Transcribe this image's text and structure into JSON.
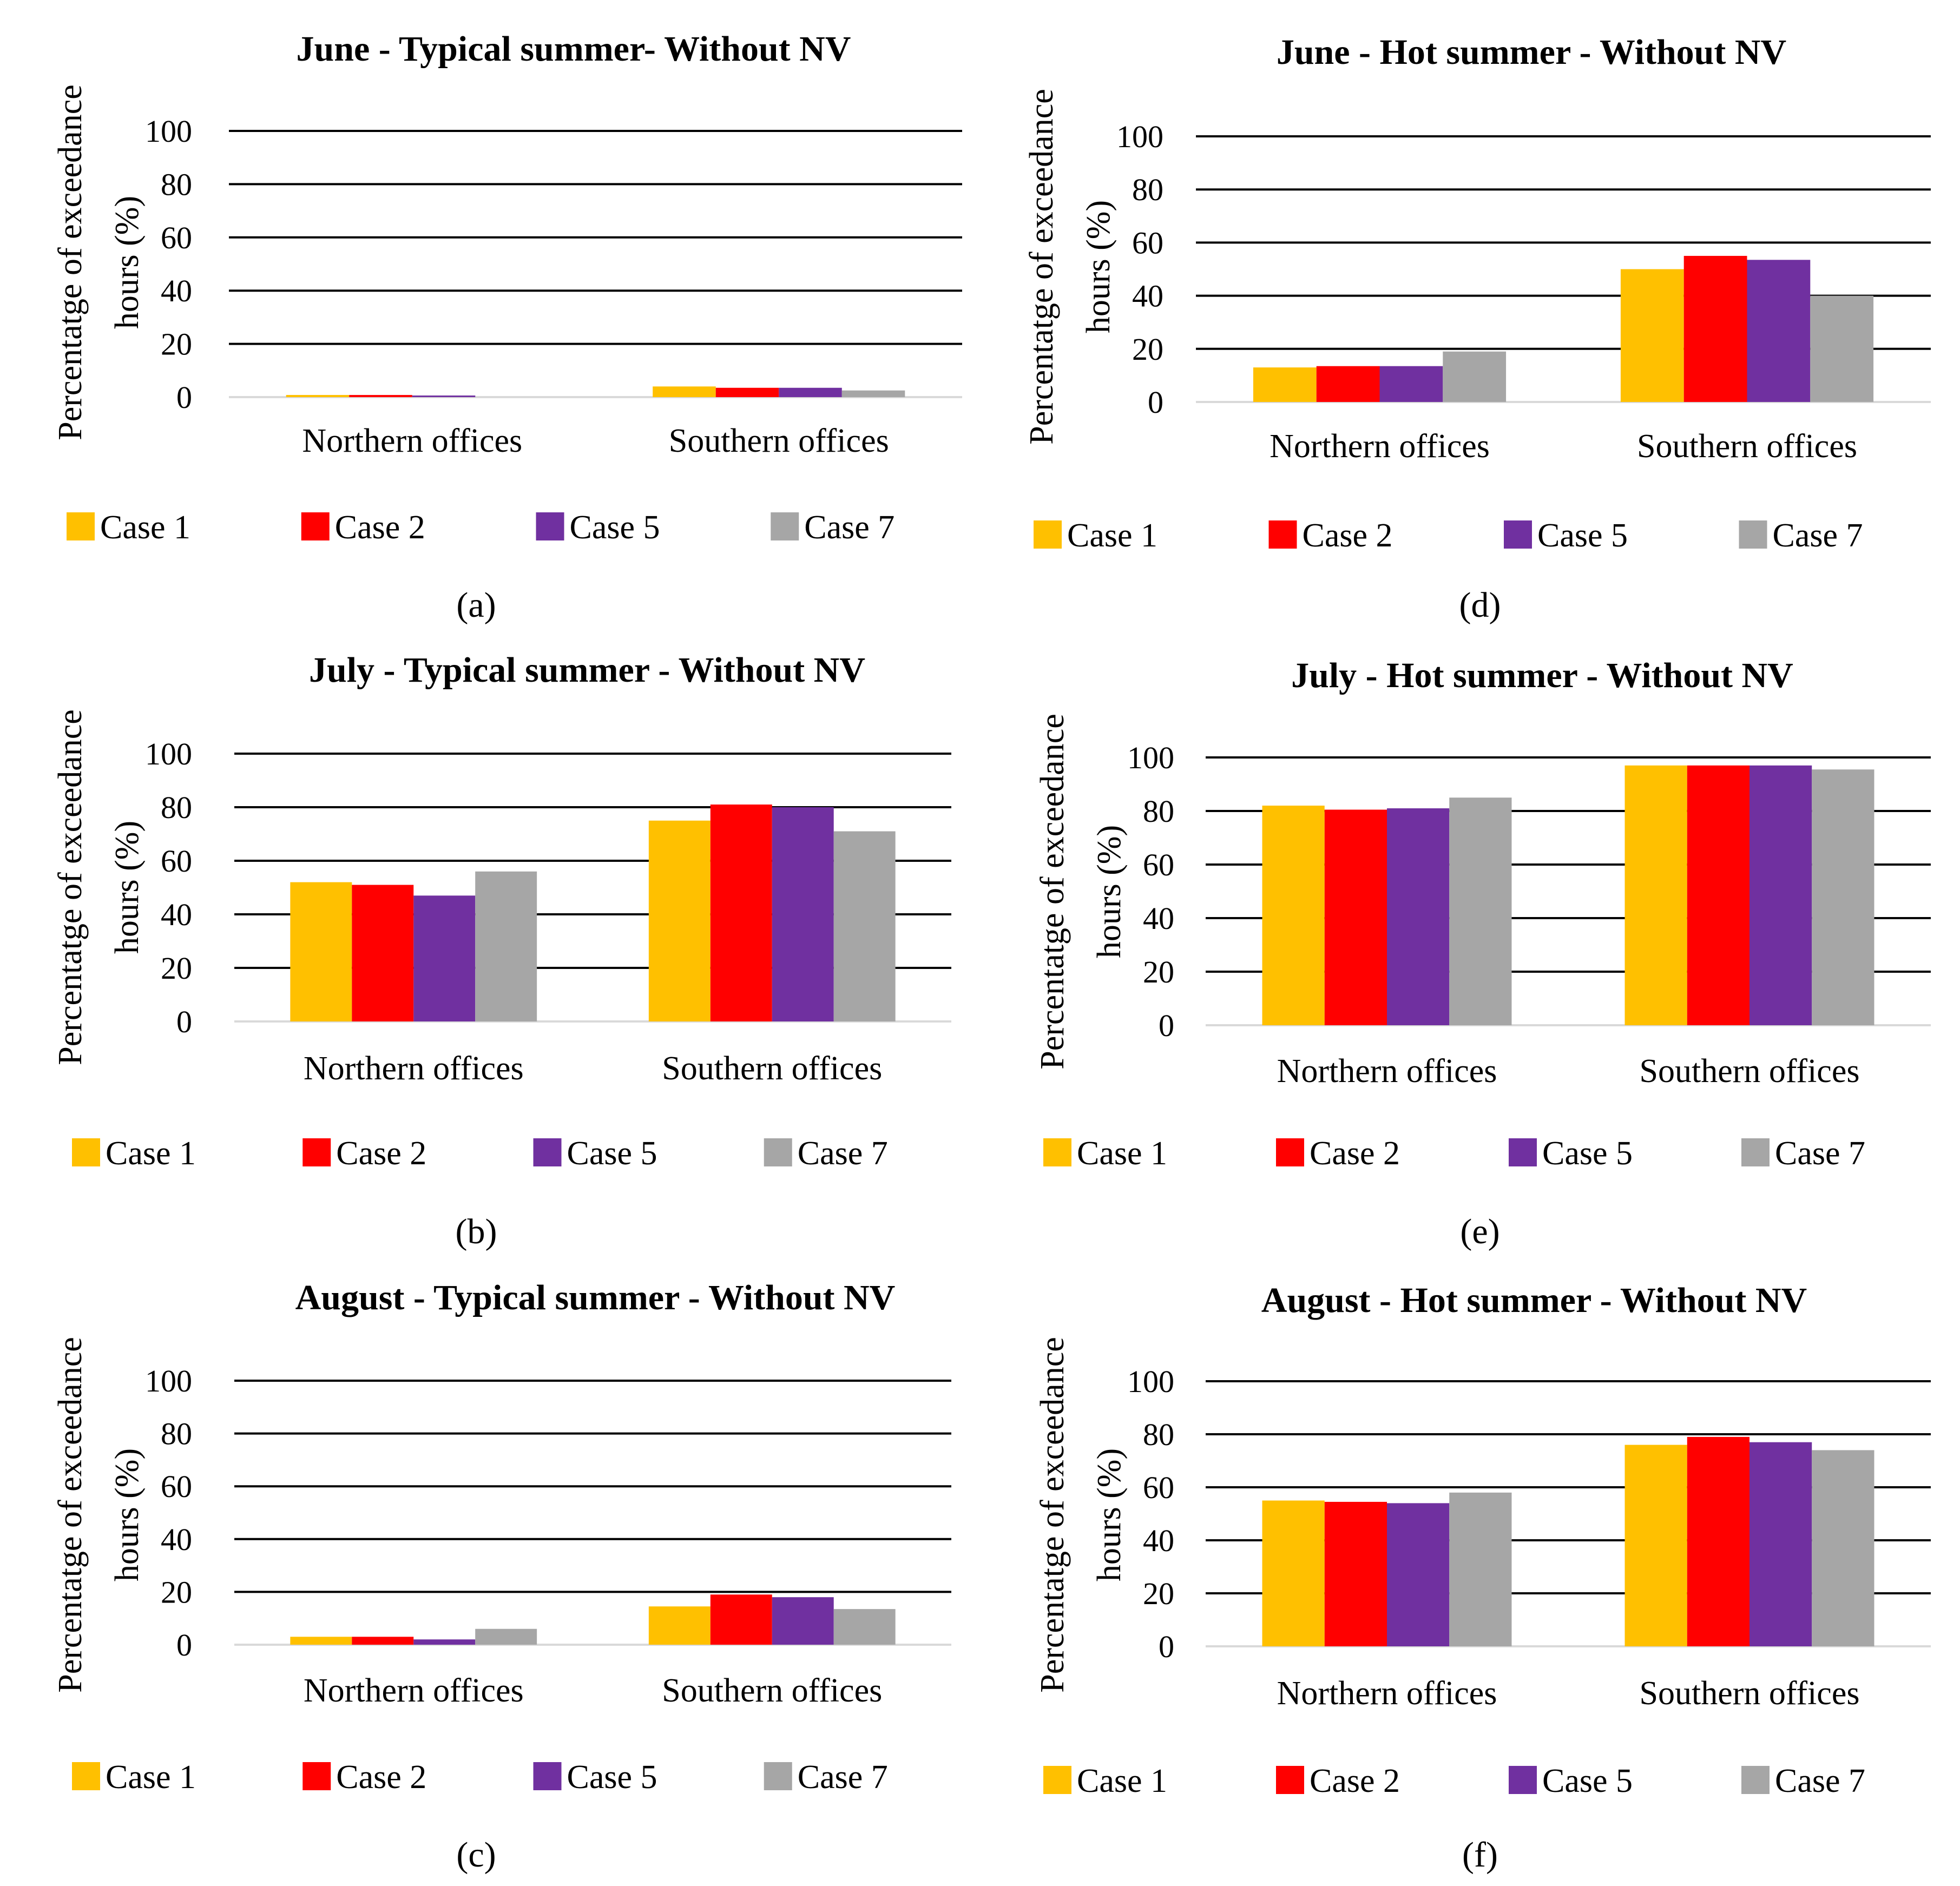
{
  "legend": [
    {
      "name": "Case 1",
      "color": "#FFC000"
    },
    {
      "name": "Case 2",
      "color": "#FF0000"
    },
    {
      "name": "Case 5",
      "color": "#7030A0"
    },
    {
      "name": "Case 7",
      "color": "#A6A6A6"
    }
  ],
  "chart_data": [
    {
      "type": "bar",
      "panel": "a",
      "caption": "(a)",
      "title": "June - Typical summer- Without NV",
      "xlabel": "",
      "ylabel": "Percentatge of exceedance hours (%)",
      "ylim": [
        0,
        100
      ],
      "yticks": [
        "0",
        "20",
        "40",
        "60",
        "80",
        "100"
      ],
      "categories": [
        "Northern offices",
        "Southern offices"
      ],
      "series": [
        {
          "name": "Case 1",
          "values": [
            0.8,
            4
          ]
        },
        {
          "name": "Case 2",
          "values": [
            0.8,
            3.5
          ]
        },
        {
          "name": "Case 5",
          "values": [
            0.6,
            3.5
          ]
        },
        {
          "name": "Case 7",
          "values": [
            0,
            2.5
          ]
        }
      ],
      "grid": true,
      "legend_position": "bottom"
    },
    {
      "type": "bar",
      "panel": "b",
      "caption": "(b)",
      "title": "July - Typical summer - Without NV",
      "xlabel": "",
      "ylabel": "Percentatge of exceedance hours (%)",
      "ylim": [
        0,
        100
      ],
      "yticks": [
        "0",
        "20",
        "40",
        "60",
        "80",
        "100"
      ],
      "categories": [
        "Northern offices",
        "Southern offices"
      ],
      "series": [
        {
          "name": "Case 1",
          "values": [
            52,
            75
          ]
        },
        {
          "name": "Case 2",
          "values": [
            51,
            81
          ]
        },
        {
          "name": "Case 5",
          "values": [
            47,
            80
          ]
        },
        {
          "name": "Case 7",
          "values": [
            56,
            71
          ]
        }
      ],
      "grid": true,
      "legend_position": "bottom"
    },
    {
      "type": "bar",
      "panel": "c",
      "caption": "(c)",
      "title": "August - Typical summer - Without NV",
      "xlabel": "",
      "ylabel": "Percentatge of exceedance hours (%)",
      "ylim": [
        0,
        100
      ],
      "yticks": [
        "0",
        "20",
        "40",
        "60",
        "80",
        "100"
      ],
      "categories": [
        "Northern offices",
        "Southern offices"
      ],
      "series": [
        {
          "name": "Case 1",
          "values": [
            3,
            14.5
          ]
        },
        {
          "name": "Case 2",
          "values": [
            3,
            19
          ]
        },
        {
          "name": "Case 5",
          "values": [
            2,
            18
          ]
        },
        {
          "name": "Case 7",
          "values": [
            6,
            13.5
          ]
        }
      ],
      "grid": true,
      "legend_position": "bottom"
    },
    {
      "type": "bar",
      "panel": "d",
      "caption": "(d)",
      "title": "June - Hot summer - Without NV",
      "xlabel": "",
      "ylabel": "Percentatge of exceedance hours (%)",
      "ylim": [
        0,
        100
      ],
      "yticks": [
        "0",
        "20",
        "40",
        "60",
        "80",
        "100"
      ],
      "categories": [
        "Northern offices",
        "Southern offices"
      ],
      "series": [
        {
          "name": "Case 1",
          "values": [
            13,
            50
          ]
        },
        {
          "name": "Case 2",
          "values": [
            13.5,
            55
          ]
        },
        {
          "name": "Case 5",
          "values": [
            13.5,
            53.5
          ]
        },
        {
          "name": "Case 7",
          "values": [
            19,
            40
          ]
        }
      ],
      "grid": true,
      "legend_position": "bottom"
    },
    {
      "type": "bar",
      "panel": "e",
      "caption": "(e)",
      "title": "July - Hot summer - Without NV",
      "xlabel": "",
      "ylabel": "Percentatge of exceedance hours (%)",
      "ylim": [
        0,
        100
      ],
      "yticks": [
        "0",
        "20",
        "40",
        "60",
        "80",
        "100"
      ],
      "categories": [
        "Northern offices",
        "Southern offices"
      ],
      "series": [
        {
          "name": "Case 1",
          "values": [
            82,
            97
          ]
        },
        {
          "name": "Case 2",
          "values": [
            80.5,
            97
          ]
        },
        {
          "name": "Case 5",
          "values": [
            81,
            97
          ]
        },
        {
          "name": "Case 7",
          "values": [
            85,
            95.5
          ]
        }
      ],
      "grid": true,
      "legend_position": "bottom"
    },
    {
      "type": "bar",
      "panel": "f",
      "caption": "(f)",
      "title": "August - Hot summer - Without NV",
      "xlabel": "",
      "ylabel": "Percentatge of exceedance hours (%)",
      "ylim": [
        0,
        100
      ],
      "yticks": [
        "0",
        "20",
        "40",
        "60",
        "80",
        "100"
      ],
      "categories": [
        "Northern offices",
        "Southern offices"
      ],
      "series": [
        {
          "name": "Case 1",
          "values": [
            55,
            76
          ]
        },
        {
          "name": "Case 2",
          "values": [
            54.5,
            79
          ]
        },
        {
          "name": "Case 5",
          "values": [
            54,
            77
          ]
        },
        {
          "name": "Case 7",
          "values": [
            58,
            74
          ]
        }
      ],
      "grid": true,
      "legend_position": "bottom"
    }
  ]
}
